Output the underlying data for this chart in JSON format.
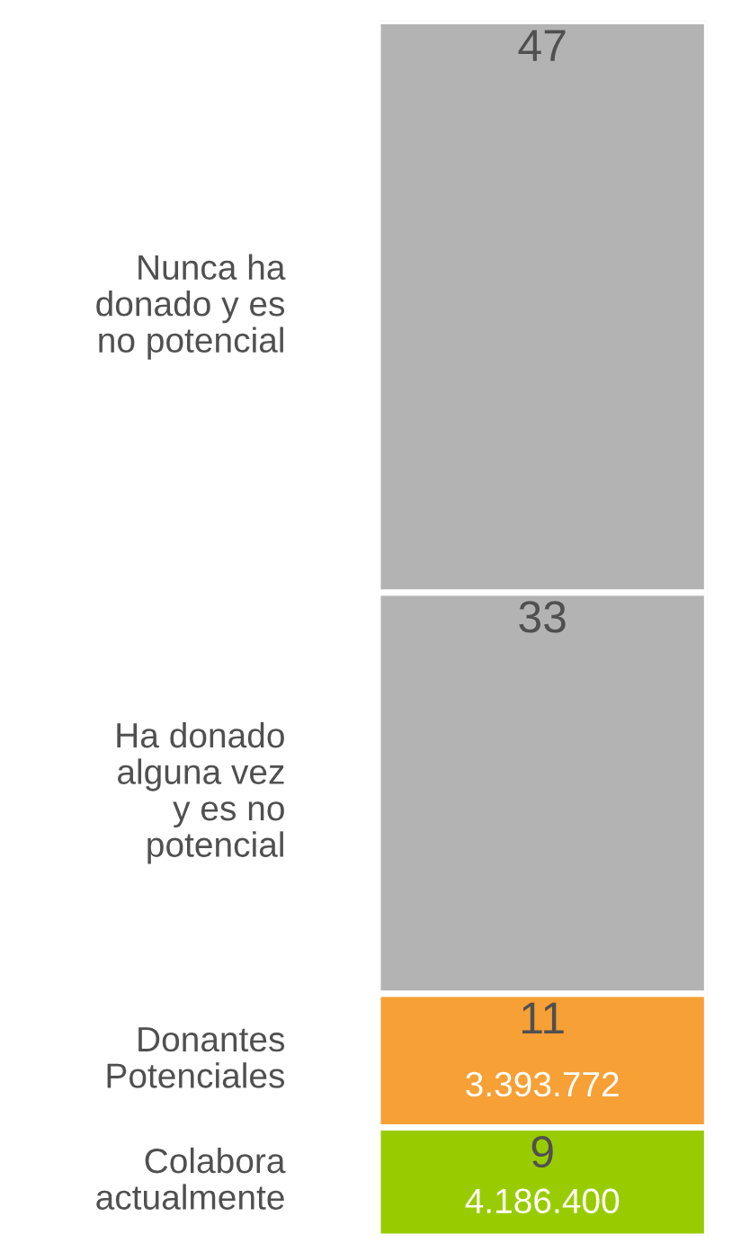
{
  "chart_data": {
    "type": "bar",
    "stacked": true,
    "categories": [
      null
    ],
    "series": [
      {
        "name": "Colabora\nactualmente",
        "color": "#99cc00",
        "values": [
          9
        ]
      },
      {
        "name": "Donantes\nPotenciales",
        "color": "#f7a035",
        "values": [
          11
        ]
      },
      {
        "name": "Ha donado\nalguna vez\ny es no\npotencial",
        "color": "#b3b3b3",
        "values": [
          33
        ]
      },
      {
        "name": "Nunca ha\ndonado y es\nno potencial",
        "color": "#b3b3b3",
        "values": [
          47
        ]
      }
    ],
    "data_labels": true,
    "annotations": [
      "4.186.400",
      "3.393.772"
    ]
  }
}
